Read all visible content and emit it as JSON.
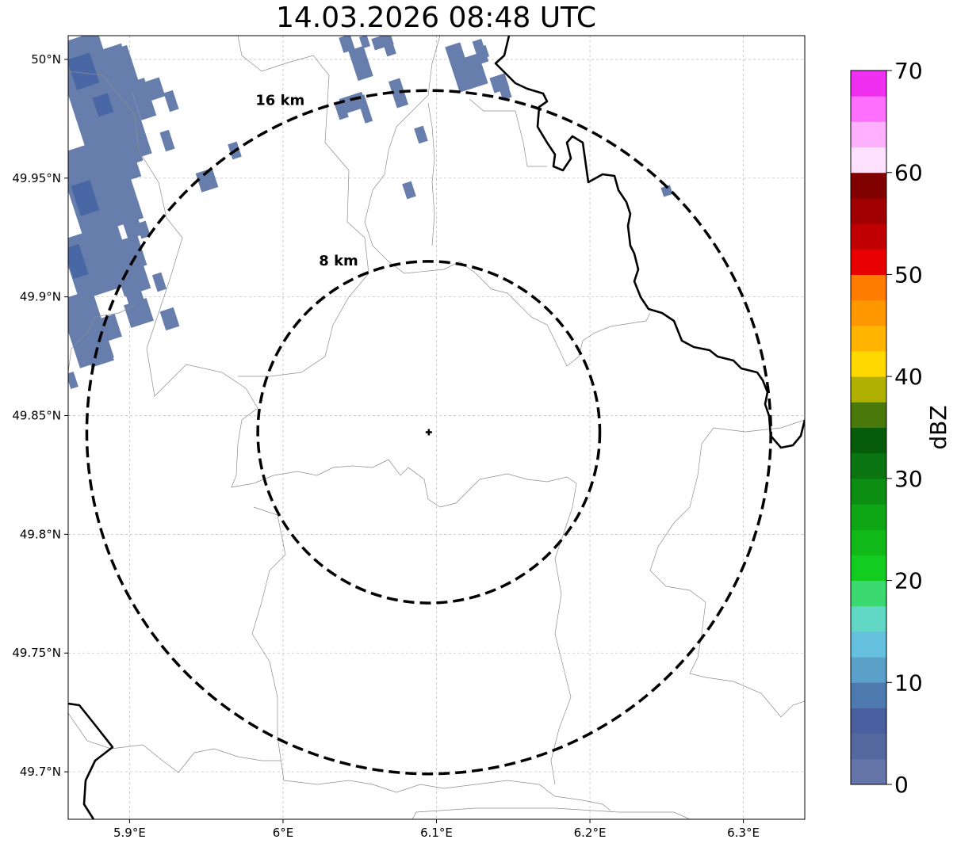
{
  "title": "14.03.2026 08:48 UTC",
  "map": {
    "lon_range": [
      5.86,
      6.34
    ],
    "lat_range": [
      49.68,
      50.01
    ],
    "lon_ticks": [
      {
        "value": 5.9,
        "label": "5.9°E"
      },
      {
        "value": 6.0,
        "label": "6°E"
      },
      {
        "value": 6.1,
        "label": "6.1°E"
      },
      {
        "value": 6.2,
        "label": "6.2°E"
      },
      {
        "value": 6.3,
        "label": "6.3°E"
      }
    ],
    "lat_ticks": [
      {
        "value": 50.0,
        "label": "50°N"
      },
      {
        "value": 49.95,
        "label": "49.95°N"
      },
      {
        "value": 49.9,
        "label": "49.9°N"
      },
      {
        "value": 49.85,
        "label": "49.85°N"
      },
      {
        "value": 49.8,
        "label": "49.8°N"
      },
      {
        "value": 49.75,
        "label": "49.75°N"
      },
      {
        "value": 49.7,
        "label": "49.7°N"
      }
    ],
    "gridlines": true,
    "center": {
      "lon": 6.095,
      "lat": 49.843
    },
    "range_rings": [
      {
        "radius_km": 8,
        "label": "8 km"
      },
      {
        "radius_km": 16,
        "label": "16 km"
      }
    ],
    "precip_color": "#5f78a8",
    "precip_dark_color": "#3f5fa0"
  },
  "colorbar": {
    "label": "dBZ",
    "min": 0,
    "max": 70,
    "tick_values": [
      0,
      10,
      20,
      30,
      40,
      50,
      60,
      70
    ],
    "tick_labels": [
      "0",
      "10",
      "20",
      "30",
      "40",
      "50",
      "60",
      "70"
    ],
    "colors": [
      "#6475a8",
      "#56699f",
      "#4a5fa0",
      "#4e7ab0",
      "#5aa0c8",
      "#64c0dc",
      "#62d8c4",
      "#3cd870",
      "#12cc20",
      "#10b818",
      "#0ea614",
      "#0c8e12",
      "#0a7410",
      "#065c0a",
      "#4a780a",
      "#b0b000",
      "#ffd800",
      "#ffb400",
      "#ff9800",
      "#ff7c00",
      "#e80000",
      "#c00000",
      "#a00000",
      "#800000",
      "#ffe0ff",
      "#ffb0ff",
      "#ff70ff",
      "#f030f0"
    ]
  }
}
